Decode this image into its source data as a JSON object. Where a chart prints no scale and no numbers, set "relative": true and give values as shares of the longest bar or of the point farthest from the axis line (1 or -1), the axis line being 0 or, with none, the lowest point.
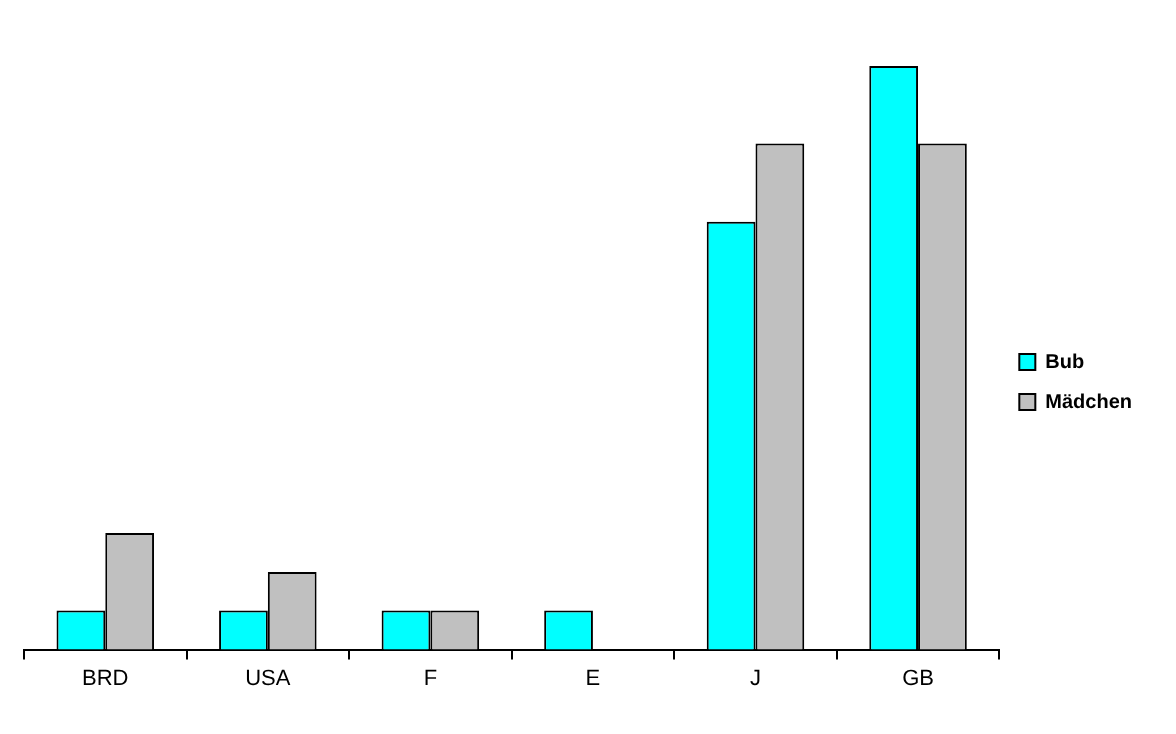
{
  "chart_data": {
    "type": "bar",
    "relative": true,
    "categories": [
      "BRD",
      "USA",
      "F",
      "E",
      "J",
      "GB"
    ],
    "series": [
      {
        "name": "Bub",
        "color": "#00ffff",
        "values": [
          0.067,
          0.067,
          0.067,
          0.067,
          0.733,
          1
        ]
      },
      {
        "name": "Mädchen",
        "color": "#c0c0c0",
        "values": [
          0.2,
          0.133,
          0.067,
          0,
          0.867,
          0.867
        ]
      }
    ],
    "legend": "right",
    "grid": false
  }
}
